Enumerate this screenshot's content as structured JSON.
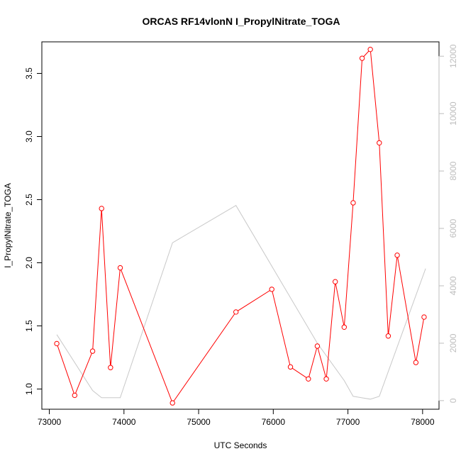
{
  "chart_data": {
    "type": "line",
    "title": "ORCAS RF14vlonN I_PropylNitrate_TOGA",
    "xlabel": "UTC Seconds",
    "ylabel": "I_PropylNitrate_TOGA",
    "xlim": [
      72900,
      78220
    ],
    "ylim": [
      0.84,
      3.75
    ],
    "y2lim": [
      -300,
      12500
    ],
    "x_ticks": [
      73000,
      74000,
      75000,
      76000,
      77000,
      78000
    ],
    "y_ticks": [
      1.0,
      1.5,
      2.0,
      2.5,
      3.0,
      3.5
    ],
    "y2_ticks": [
      0,
      2000,
      4000,
      6000,
      8000,
      10000,
      12000
    ],
    "series": [
      {
        "axis": "left",
        "color": "#ff0000",
        "markers": "open-circle",
        "x": [
          73100,
          73340,
          73580,
          73700,
          73820,
          73950,
          74650,
          75500,
          75980,
          76230,
          76470,
          76590,
          76710,
          76830,
          76950,
          77070,
          77190,
          77300,
          77420,
          77540,
          77660,
          77910,
          78020
        ],
        "y": [
          1.36,
          0.95,
          1.3,
          2.43,
          1.17,
          1.96,
          0.89,
          1.61,
          1.79,
          1.175,
          1.08,
          1.34,
          1.08,
          1.85,
          1.49,
          2.475,
          3.62,
          3.69,
          2.95,
          1.42,
          2.06,
          1.21,
          1.57
        ]
      },
      {
        "axis": "right",
        "color": "#c8c8c8",
        "markers": "none",
        "x": [
          73100,
          73580,
          73700,
          73950,
          74650,
          75500,
          76590,
          76950,
          77070,
          77300,
          77420,
          78040
        ],
        "y": [
          2300,
          350,
          100,
          100,
          5500,
          6800,
          2000,
          700,
          150,
          50,
          150,
          4600
        ]
      }
    ]
  }
}
